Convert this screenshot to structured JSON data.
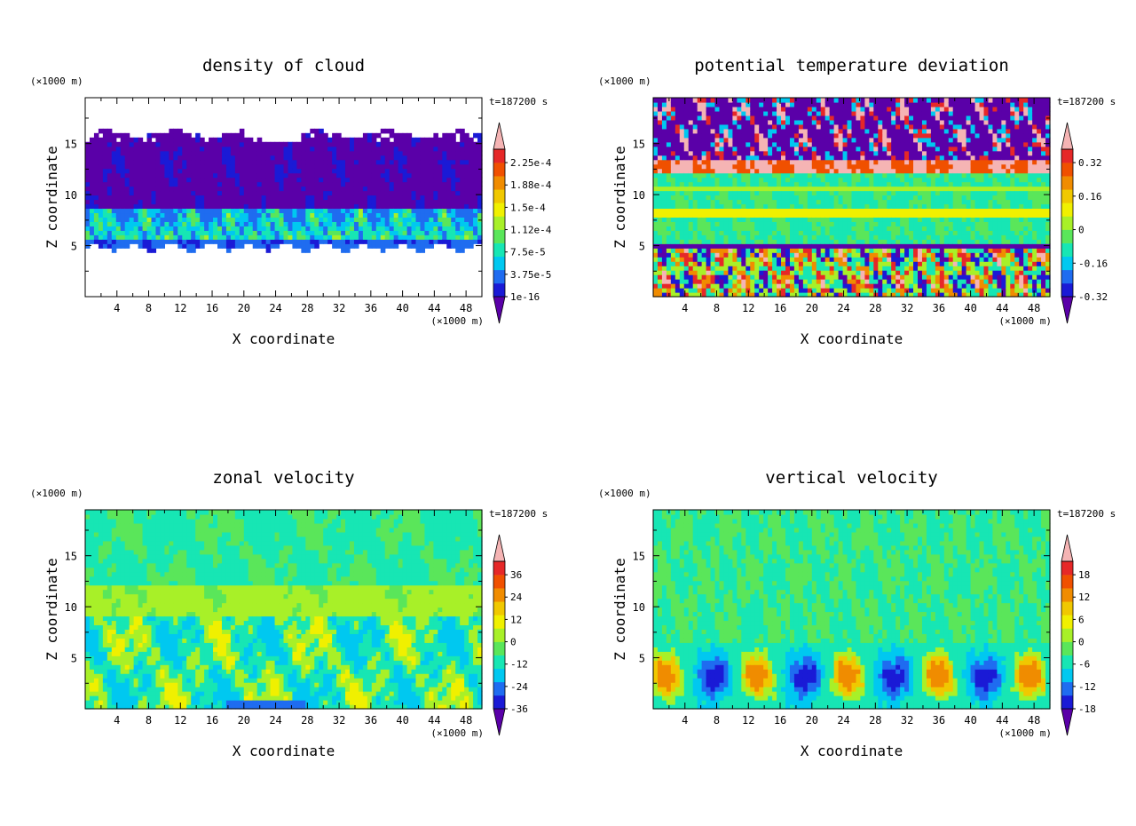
{
  "chart_data": [
    {
      "type": "heatmap",
      "title": "density of cloud",
      "xlabel": "X coordinate",
      "ylabel": "Z coordinate",
      "x_unit": "(×1000 m)",
      "y_unit": "(×1000 m)",
      "time_label": "t=187200 s",
      "xlim": [
        0,
        50
      ],
      "ylim": [
        0,
        19.5
      ],
      "x_ticks": [
        "4",
        "8",
        "12",
        "16",
        "20",
        "24",
        "28",
        "32",
        "36",
        "40",
        "44",
        "48"
      ],
      "y_ticks": [
        "5",
        "10",
        "15"
      ],
      "colorbar": {
        "labels": [
          "1e-16",
          "3.75e-5",
          "7.5e-5",
          "1.12e-4",
          "1.5e-4",
          "1.88e-4",
          "2.25e-4"
        ],
        "colors": [
          "#5a00a8",
          "#1a1ad6",
          "#1f6cf0",
          "#00c8f0",
          "#17e6b4",
          "#5ae65a",
          "#a8f028",
          "#f0f000",
          "#f0c800",
          "#f08c00",
          "#f05000",
          "#e62828",
          "#f5b4b4"
        ]
      },
      "pattern": "cloud",
      "grid": false
    },
    {
      "type": "heatmap",
      "title": "potential temperature deviation",
      "xlabel": "X coordinate",
      "ylabel": "Z coordinate",
      "x_unit": "(×1000 m)",
      "y_unit": "(×1000 m)",
      "time_label": "t=187200 s",
      "xlim": [
        0,
        50
      ],
      "ylim": [
        0,
        19.5
      ],
      "x_ticks": [
        "4",
        "8",
        "12",
        "16",
        "20",
        "24",
        "28",
        "32",
        "36",
        "40",
        "44",
        "48"
      ],
      "y_ticks": [
        "5",
        "10",
        "15"
      ],
      "colorbar": {
        "labels": [
          "-0.32",
          "-0.16",
          "0",
          "0.16",
          "0.32"
        ],
        "colors": [
          "#5a00a8",
          "#1a1ad6",
          "#1f6cf0",
          "#00c8f0",
          "#17e6b4",
          "#5ae65a",
          "#a8f028",
          "#f0f000",
          "#f0c800",
          "#f08c00",
          "#f05000",
          "#e62828",
          "#f5b4b4"
        ]
      },
      "pattern": "theta",
      "grid": false
    },
    {
      "type": "heatmap",
      "title": "zonal velocity",
      "xlabel": "X coordinate",
      "ylabel": "Z coordinate",
      "x_unit": "(×1000 m)",
      "y_unit": "(×1000 m)",
      "time_label": "t=187200 s",
      "xlim": [
        0,
        50
      ],
      "ylim": [
        0,
        19.5
      ],
      "x_ticks": [
        "4",
        "8",
        "12",
        "16",
        "20",
        "24",
        "28",
        "32",
        "36",
        "40",
        "44",
        "48"
      ],
      "y_ticks": [
        "5",
        "10",
        "15"
      ],
      "colorbar": {
        "labels": [
          "-36",
          "-24",
          "-12",
          "0",
          "12",
          "24",
          "36"
        ],
        "colors": [
          "#5a00a8",
          "#1a1ad6",
          "#1f6cf0",
          "#00c8f0",
          "#17e6b4",
          "#5ae65a",
          "#a8f028",
          "#f0f000",
          "#f0c800",
          "#f08c00",
          "#f05000",
          "#e62828",
          "#f5b4b4"
        ]
      },
      "pattern": "zonal",
      "grid": false
    },
    {
      "type": "heatmap",
      "title": "vertical velocity",
      "xlabel": "X coordinate",
      "ylabel": "Z coordinate",
      "x_unit": "(×1000 m)",
      "y_unit": "(×1000 m)",
      "time_label": "t=187200 s",
      "xlim": [
        0,
        50
      ],
      "ylim": [
        0,
        19.5
      ],
      "x_ticks": [
        "4",
        "8",
        "12",
        "16",
        "20",
        "24",
        "28",
        "32",
        "36",
        "40",
        "44",
        "48"
      ],
      "y_ticks": [
        "5",
        "10",
        "15"
      ],
      "colorbar": {
        "labels": [
          "-18",
          "-12",
          "-6",
          "0",
          "6",
          "12",
          "18"
        ],
        "colors": [
          "#5a00a8",
          "#1a1ad6",
          "#1f6cf0",
          "#00c8f0",
          "#17e6b4",
          "#5ae65a",
          "#a8f028",
          "#f0f000",
          "#f0c800",
          "#f08c00",
          "#f05000",
          "#e62828",
          "#f5b4b4"
        ]
      },
      "pattern": "vertical",
      "grid": false
    }
  ]
}
